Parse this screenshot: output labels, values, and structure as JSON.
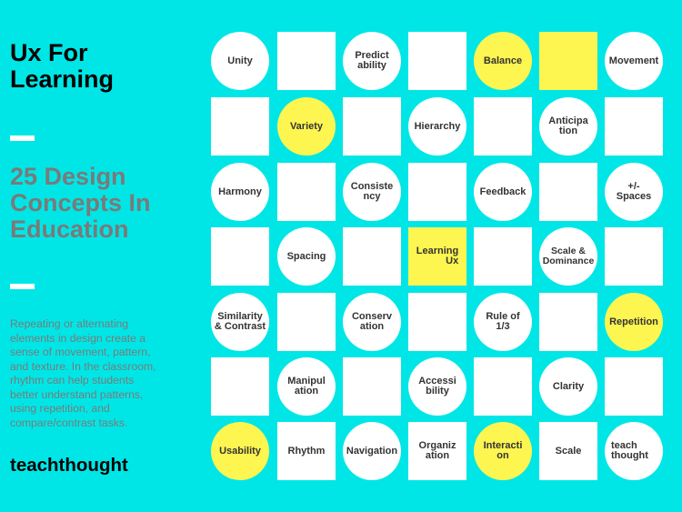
{
  "sidebar": {
    "title": "Ux For\nLearning",
    "subtitle": "25 Design\nConcepts In\nEducation",
    "description": "Repeating or alternating elements in design create a sense of movement, pattern, and texture. In the classroom, rhythm can help students better understand patterns, using repetition, and compare/contrast tasks.",
    "brand": "teachthought"
  },
  "colors": {
    "background": "#00e6e6",
    "tile": "#ffffff",
    "highlight": "#fdf550",
    "subtitle_text": "#7a7a7a"
  },
  "grid": {
    "rows": [
      [
        {
          "label": "Unity",
          "shape": "circle",
          "color": "white"
        },
        {
          "label": "",
          "shape": "square",
          "color": "white"
        },
        {
          "label": "Predict\nability",
          "shape": "circle",
          "color": "white"
        },
        {
          "label": "",
          "shape": "square",
          "color": "white"
        },
        {
          "label": "Balance",
          "shape": "circle",
          "color": "yellow"
        },
        {
          "label": "",
          "shape": "square",
          "color": "yellow"
        },
        {
          "label": "Movement",
          "shape": "circle",
          "color": "white"
        }
      ],
      [
        {
          "label": "",
          "shape": "square",
          "color": "white"
        },
        {
          "label": "Variety",
          "shape": "circle",
          "color": "yellow"
        },
        {
          "label": "",
          "shape": "square",
          "color": "white"
        },
        {
          "label": "Hierarchy",
          "shape": "circle",
          "color": "white"
        },
        {
          "label": "",
          "shape": "square",
          "color": "white"
        },
        {
          "label": "Anticipa\ntion",
          "shape": "circle",
          "color": "white"
        },
        {
          "label": "",
          "shape": "square",
          "color": "white"
        }
      ],
      [
        {
          "label": "Harmony",
          "shape": "circle",
          "color": "white"
        },
        {
          "label": "",
          "shape": "square",
          "color": "white"
        },
        {
          "label": "Consiste\nncy",
          "shape": "circle",
          "color": "white"
        },
        {
          "label": "",
          "shape": "square",
          "color": "white"
        },
        {
          "label": "Feedback",
          "shape": "circle",
          "color": "white"
        },
        {
          "label": "",
          "shape": "square",
          "color": "white"
        },
        {
          "label": "+/-\nSpaces",
          "shape": "circle",
          "color": "white"
        }
      ],
      [
        {
          "label": "",
          "shape": "square",
          "color": "white"
        },
        {
          "label": "Spacing",
          "shape": "circle",
          "color": "white"
        },
        {
          "label": "",
          "shape": "square",
          "color": "white"
        },
        {
          "label": "Learning\nUx",
          "shape": "square",
          "color": "yellow"
        },
        {
          "label": "",
          "shape": "square",
          "color": "white"
        },
        {
          "label": "Scale &\nDominance",
          "shape": "circle",
          "color": "white"
        },
        {
          "label": "",
          "shape": "square",
          "color": "white"
        }
      ],
      [
        {
          "label": "Similarity\n& Contrast",
          "shape": "circle",
          "color": "white"
        },
        {
          "label": "",
          "shape": "square",
          "color": "white"
        },
        {
          "label": "Conserv\nation",
          "shape": "circle",
          "color": "white"
        },
        {
          "label": "",
          "shape": "square",
          "color": "white"
        },
        {
          "label": "Rule of\n1/3",
          "shape": "circle",
          "color": "white"
        },
        {
          "label": "",
          "shape": "square",
          "color": "white"
        },
        {
          "label": "Repetition",
          "shape": "circle",
          "color": "yellow"
        }
      ],
      [
        {
          "label": "",
          "shape": "square",
          "color": "white"
        },
        {
          "label": "Manipul\nation",
          "shape": "circle",
          "color": "white"
        },
        {
          "label": "",
          "shape": "square",
          "color": "white"
        },
        {
          "label": "Accessi\nbility",
          "shape": "circle",
          "color": "white"
        },
        {
          "label": "",
          "shape": "square",
          "color": "white"
        },
        {
          "label": "Clarity",
          "shape": "circle",
          "color": "white"
        },
        {
          "label": "",
          "shape": "square",
          "color": "white"
        }
      ],
      [
        {
          "label": "Usability",
          "shape": "circle",
          "color": "yellow"
        },
        {
          "label": "Rhythm",
          "shape": "square",
          "color": "white"
        },
        {
          "label": "Navigation",
          "shape": "circle",
          "color": "white"
        },
        {
          "label": "Organiz\nation",
          "shape": "square",
          "color": "white"
        },
        {
          "label": "Interacti\non",
          "shape": "circle",
          "color": "yellow"
        },
        {
          "label": "Scale",
          "shape": "square",
          "color": "white"
        },
        {
          "label": "teach\nthought",
          "shape": "circle",
          "color": "white"
        }
      ]
    ]
  }
}
